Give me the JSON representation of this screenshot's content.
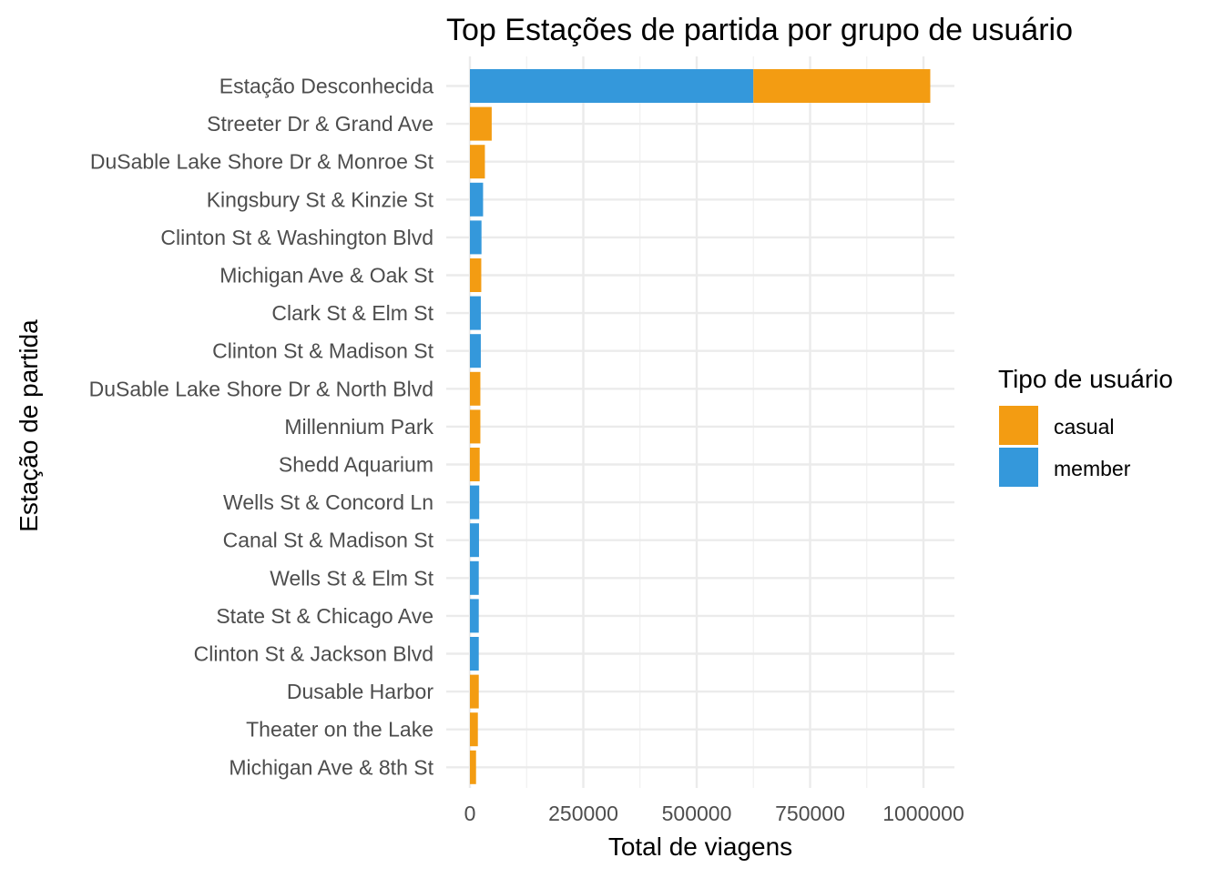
{
  "chart_data": {
    "type": "bar",
    "orientation": "horizontal",
    "stacked": true,
    "title": "Top Estações de partida por grupo de usuário",
    "xlabel": "Total de viagens",
    "ylabel": "Estação de partida",
    "xlim": [
      0,
      1000000
    ],
    "x_ticks": [
      "0",
      "250000",
      "500000",
      "750000",
      "1000000"
    ],
    "grid": true,
    "legend": {
      "title": "Tipo de usuário",
      "position": "right",
      "entries": [
        "casual",
        "member"
      ]
    },
    "categories": [
      "Estação Desconhecida",
      "Streeter Dr & Grand Ave",
      "DuSable Lake Shore Dr & Monroe St",
      "Kingsbury St & Kinzie St",
      "Clinton St & Washington Blvd",
      "Michigan Ave & Oak St",
      "Clark St & Elm St",
      "Clinton St & Madison St",
      "DuSable Lake Shore Dr & North Blvd",
      "Millennium Park",
      "Shedd Aquarium",
      "Wells St & Concord Ln",
      "Canal St & Madison St",
      "Wells St & Elm St",
      "State St & Chicago Ave",
      "Clinton St & Jackson Blvd",
      "Dusable Harbor",
      "Theater on the Lake",
      "Michigan Ave & 8th St"
    ],
    "series": [
      {
        "name": "member",
        "color": "#3498db",
        "values": [
          625000,
          0,
          0,
          29000,
          25500,
          0,
          24000,
          24000,
          0,
          0,
          0,
          20500,
          20000,
          19500,
          19500,
          19500,
          0,
          0,
          0
        ]
      },
      {
        "name": "casual",
        "color": "#f39c12",
        "values": [
          390000,
          48000,
          33000,
          0,
          0,
          25000,
          0,
          0,
          23000,
          23000,
          21500,
          0,
          0,
          0,
          0,
          0,
          19500,
          17500,
          13500
        ]
      }
    ]
  }
}
